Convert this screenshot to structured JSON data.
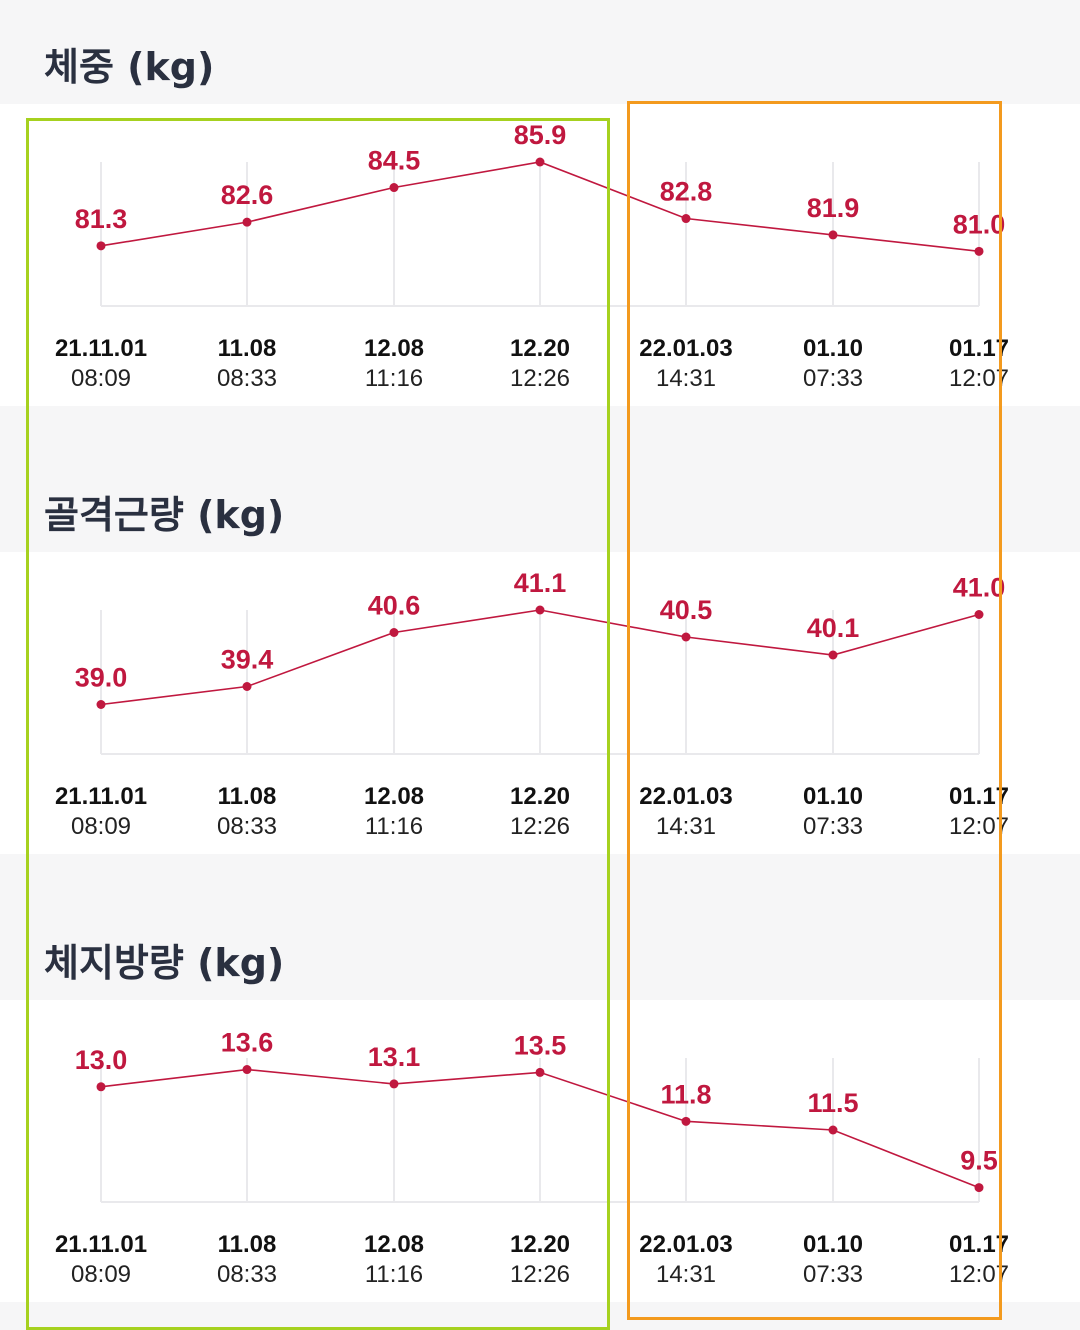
{
  "x_labels": [
    {
      "date": "21.11.01",
      "time": "08:09"
    },
    {
      "date": "11.08",
      "time": "08:33"
    },
    {
      "date": "12.08",
      "time": "11:16"
    },
    {
      "date": "12.20",
      "time": "12:26"
    },
    {
      "date": "22.01.03",
      "time": "14:31"
    },
    {
      "date": "01.10",
      "time": "07:33"
    },
    {
      "date": "01.17",
      "time": "12:07"
    }
  ],
  "colors": {
    "line": "#c0183f",
    "grid": "#e9e9ec",
    "highlight_left": "#a6d11f",
    "highlight_right": "#f39a1e"
  },
  "chart_data": [
    {
      "type": "line",
      "title": "체중 (kg)",
      "categories": [
        "21.11.01 08:09",
        "11.08 08:33",
        "12.08 11:16",
        "12.20 12:26",
        "22.01.03 14:31",
        "01.10 07:33",
        "01.17 12:07"
      ],
      "series": [
        {
          "values": [
            81.3,
            82.6,
            84.5,
            85.9,
            82.8,
            81.9,
            81.0
          ]
        }
      ],
      "ylim": [
        78.0,
        85.9
      ],
      "grid": "vertical"
    },
    {
      "type": "line",
      "title": "골격근량 (kg)",
      "categories": [
        "21.11.01 08:09",
        "11.08 08:33",
        "12.08 11:16",
        "12.20 12:26",
        "22.01.03 14:31",
        "01.10 07:33",
        "01.17 12:07"
      ],
      "series": [
        {
          "values": [
            39.0,
            39.4,
            40.6,
            41.1,
            40.5,
            40.1,
            41.0
          ]
        }
      ],
      "ylim": [
        37.9,
        41.1
      ],
      "grid": "vertical"
    },
    {
      "type": "line",
      "title": "체지방량 (kg)",
      "categories": [
        "21.11.01 08:09",
        "11.08 08:33",
        "12.08 11:16",
        "12.20 12:26",
        "22.01.03 14:31",
        "01.10 07:33",
        "01.17 12:07"
      ],
      "series": [
        {
          "values": [
            13.0,
            13.6,
            13.1,
            13.5,
            11.8,
            11.5,
            9.5
          ]
        }
      ],
      "ylim": [
        9.0,
        14.0
      ],
      "grid": "vertical"
    }
  ]
}
